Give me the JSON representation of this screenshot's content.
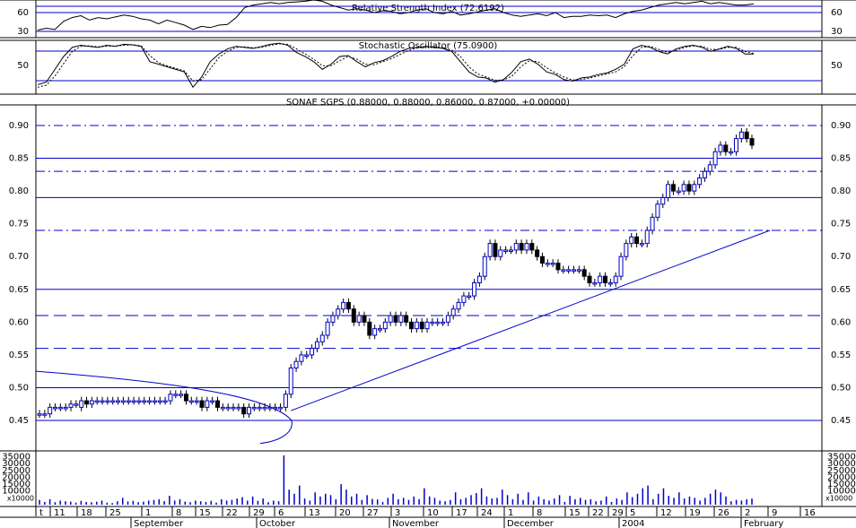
{
  "chart_data": [
    {
      "type": "line",
      "title": "Relative Strength Index (72.6192)",
      "y_ticks": [
        30,
        60
      ],
      "ylim": [
        20,
        80
      ],
      "reference_lines": [
        30,
        60
      ],
      "values": [
        32,
        35,
        33,
        46,
        52,
        55,
        48,
        52,
        50,
        53,
        56,
        54,
        50,
        48,
        42,
        48,
        44,
        40,
        33,
        38,
        36,
        40,
        41,
        52,
        68,
        72,
        74,
        76,
        74,
        76,
        77,
        78,
        80,
        78,
        72,
        68,
        64,
        66,
        64,
        60,
        63,
        62,
        58,
        60,
        64,
        66,
        60,
        58,
        62,
        56,
        58,
        61,
        64,
        66,
        60,
        56,
        54,
        56,
        58,
        55,
        60,
        52,
        54,
        54,
        56,
        55,
        56,
        52,
        58,
        62,
        64,
        68,
        72,
        74,
        76,
        74,
        76,
        78,
        74,
        76,
        74,
        72,
        72,
        74
      ]
    },
    {
      "type": "line",
      "title": "Stochastic Oscillator (75.0900)",
      "y_ticks": [
        50
      ],
      "ylim": [
        0,
        100
      ],
      "series": [
        {
          "values": [
            15,
            20,
            45,
            70,
            88,
            92,
            90,
            88,
            92,
            90,
            94,
            93,
            90,
            60,
            55,
            50,
            45,
            40,
            10,
            30,
            60,
            75,
            85,
            90,
            88,
            86,
            90,
            94,
            96,
            92,
            78,
            70,
            60,
            45,
            55,
            70,
            72,
            60,
            50,
            58,
            62,
            70,
            80,
            86,
            88,
            90,
            88,
            86,
            80,
            60,
            40,
            30,
            28,
            20,
            25,
            40,
            60,
            65,
            55,
            40,
            35,
            25,
            22,
            28,
            30,
            35,
            38,
            45,
            55,
            85,
            92,
            88,
            80,
            75,
            85,
            90,
            92,
            88,
            80,
            85,
            90,
            86,
            75,
            75
          ]
        },
        {
          "values": [
            10,
            14,
            32,
            56,
            80,
            90,
            91,
            89,
            90,
            91,
            92,
            93,
            91,
            72,
            58,
            52,
            47,
            42,
            22,
            25,
            46,
            68,
            80,
            88,
            89,
            87,
            88,
            92,
            95,
            94,
            85,
            75,
            65,
            52,
            52,
            62,
            70,
            65,
            55,
            54,
            60,
            66,
            74,
            82,
            87,
            89,
            89,
            87,
            83,
            70,
            50,
            36,
            30,
            24,
            24,
            32,
            50,
            62,
            60,
            48,
            38,
            30,
            24,
            25,
            28,
            32,
            36,
            40,
            50,
            72,
            88,
            90,
            84,
            78,
            82,
            88,
            91,
            90,
            84,
            84,
            88,
            88,
            80,
            76
          ]
        }
      ]
    },
    {
      "type": "candlestick",
      "title": "SONAE SGPS (0.88000, 0.88000, 0.86000, 0.87000, +0.00000)",
      "ylim": [
        0.41,
        0.95
      ],
      "y_ticks": [
        0.45,
        0.5,
        0.55,
        0.6,
        0.65,
        0.7,
        0.75,
        0.8,
        0.85,
        0.9
      ],
      "y_tick_labels": [
        "0.45",
        "0.50",
        "0.55",
        "0.60",
        "0.65",
        "0.70",
        "0.75",
        "0.80",
        "0.85",
        "0.90"
      ],
      "close": [
        0.46,
        0.46,
        0.47,
        0.47,
        0.47,
        0.47,
        0.475,
        0.475,
        0.48,
        0.475,
        0.48,
        0.48,
        0.48,
        0.48,
        0.48,
        0.48,
        0.48,
        0.48,
        0.48,
        0.48,
        0.48,
        0.48,
        0.48,
        0.48,
        0.48,
        0.49,
        0.49,
        0.49,
        0.48,
        0.48,
        0.48,
        0.47,
        0.48,
        0.48,
        0.47,
        0.47,
        0.47,
        0.47,
        0.47,
        0.46,
        0.47,
        0.47,
        0.47,
        0.47,
        0.47,
        0.47,
        0.47,
        0.49,
        0.53,
        0.54,
        0.55,
        0.55,
        0.56,
        0.57,
        0.58,
        0.6,
        0.61,
        0.62,
        0.63,
        0.62,
        0.6,
        0.61,
        0.6,
        0.58,
        0.59,
        0.59,
        0.6,
        0.61,
        0.6,
        0.61,
        0.6,
        0.59,
        0.6,
        0.59,
        0.6,
        0.6,
        0.6,
        0.6,
        0.61,
        0.62,
        0.63,
        0.64,
        0.64,
        0.66,
        0.67,
        0.7,
        0.72,
        0.7,
        0.71,
        0.71,
        0.71,
        0.72,
        0.71,
        0.72,
        0.71,
        0.7,
        0.69,
        0.69,
        0.69,
        0.68,
        0.68,
        0.68,
        0.68,
        0.68,
        0.67,
        0.66,
        0.66,
        0.67,
        0.66,
        0.66,
        0.67,
        0.7,
        0.72,
        0.73,
        0.72,
        0.72,
        0.74,
        0.76,
        0.78,
        0.79,
        0.81,
        0.8,
        0.8,
        0.81,
        0.8,
        0.81,
        0.82,
        0.83,
        0.84,
        0.86,
        0.87,
        0.86,
        0.86,
        0.88,
        0.89,
        0.88,
        0.87
      ],
      "open": [
        0.46,
        0.46,
        0.46,
        0.47,
        0.47,
        0.47,
        0.47,
        0.475,
        0.47,
        0.48,
        0.475,
        0.48,
        0.48,
        0.48,
        0.48,
        0.48,
        0.48,
        0.48,
        0.48,
        0.48,
        0.48,
        0.48,
        0.48,
        0.48,
        0.48,
        0.48,
        0.49,
        0.49,
        0.49,
        0.48,
        0.48,
        0.48,
        0.47,
        0.48,
        0.48,
        0.47,
        0.47,
        0.47,
        0.47,
        0.47,
        0.46,
        0.47,
        0.47,
        0.47,
        0.47,
        0.47,
        0.47,
        0.47,
        0.49,
        0.53,
        0.54,
        0.55,
        0.55,
        0.56,
        0.57,
        0.58,
        0.6,
        0.61,
        0.62,
        0.63,
        0.62,
        0.6,
        0.61,
        0.6,
        0.58,
        0.59,
        0.59,
        0.6,
        0.61,
        0.6,
        0.61,
        0.6,
        0.59,
        0.6,
        0.59,
        0.6,
        0.6,
        0.6,
        0.6,
        0.61,
        0.62,
        0.63,
        0.64,
        0.64,
        0.66,
        0.67,
        0.7,
        0.72,
        0.7,
        0.71,
        0.71,
        0.71,
        0.72,
        0.71,
        0.72,
        0.71,
        0.7,
        0.69,
        0.69,
        0.69,
        0.68,
        0.68,
        0.68,
        0.68,
        0.68,
        0.67,
        0.66,
        0.66,
        0.67,
        0.66,
        0.66,
        0.67,
        0.7,
        0.72,
        0.73,
        0.72,
        0.72,
        0.74,
        0.76,
        0.78,
        0.79,
        0.81,
        0.8,
        0.8,
        0.81,
        0.8,
        0.81,
        0.82,
        0.83,
        0.84,
        0.86,
        0.87,
        0.86,
        0.86,
        0.88,
        0.89,
        0.88
      ],
      "reference_lines": [
        0.45,
        0.5,
        0.65,
        0.79,
        0.85
      ],
      "dashed_lines": [
        0.56,
        0.61
      ],
      "dashdot_lines": [
        0.74,
        0.83,
        0.9
      ],
      "trendline": {
        "from": [
          48,
          0.465
        ],
        "to": [
          141,
          0.74
        ]
      }
    },
    {
      "type": "bar",
      "y_ticks": [
        5000,
        10000,
        15000,
        20000,
        25000,
        30000,
        35000
      ],
      "y_tick_labels": [
        "x10000",
        "10000",
        "15000",
        "20000",
        "25000",
        "30000",
        "35000"
      ],
      "ylim": [
        0,
        38000
      ],
      "values": [
        3500,
        2000,
        4000,
        1800,
        3000,
        2500,
        2200,
        1500,
        2800,
        2000,
        1800,
        2200,
        3000,
        1500,
        1200,
        2500,
        5000,
        2400,
        2800,
        1800,
        2200,
        3000,
        3500,
        4000,
        2600,
        6500,
        3000,
        4000,
        2200,
        1800,
        3000,
        2500,
        2000,
        2800,
        1500,
        4000,
        3000,
        3500,
        4500,
        5500,
        3000,
        6000,
        2800,
        4500,
        1800,
        3000,
        2500,
        36000,
        11000,
        8000,
        14000,
        4500,
        3000,
        9000,
        6000,
        8000,
        7000,
        4000,
        15000,
        11000,
        6000,
        8000,
        3500,
        7000,
        4200,
        3800,
        2000,
        5000,
        8000,
        4000,
        5000,
        3500,
        6000,
        4000,
        12000,
        6000,
        5000,
        3000,
        2500,
        3500,
        9000,
        4000,
        5000,
        7000,
        8500,
        12000,
        6000,
        4500,
        5000,
        11000,
        7000,
        4000,
        8000,
        3500,
        9000,
        3000,
        6000,
        4000,
        3000,
        4500,
        7000,
        2000,
        6500,
        4000,
        5000,
        3500,
        4000,
        2500,
        3000,
        6000,
        2000,
        4500,
        3500,
        9000,
        5500,
        8000,
        12000,
        14000,
        4000,
        8000,
        12000,
        6500,
        5000,
        9000,
        4500,
        6000,
        5000,
        3000,
        5000,
        8000,
        11000,
        9000,
        6000,
        2500,
        3500,
        3000,
        4000,
        4500
      ],
      "x_tick_labels": [
        "t",
        "11",
        "18",
        "25",
        "1",
        "8",
        "15",
        "22",
        "29",
        "6",
        "13",
        "20",
        "27",
        "3",
        "10",
        "17",
        "24",
        "1",
        "8",
        "15",
        "22",
        "29",
        "5",
        "12",
        "19",
        "26",
        "2",
        "9",
        "16"
      ],
      "month_labels": [
        "September",
        "October",
        "November",
        "December",
        "2004",
        "February"
      ]
    }
  ]
}
